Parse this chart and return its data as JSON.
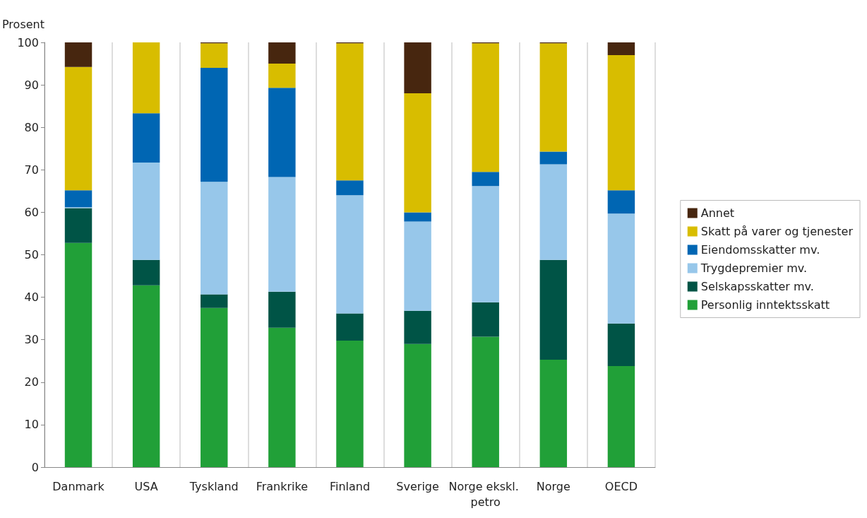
{
  "chart_data": {
    "type": "bar",
    "stacked": true,
    "ylabel": "Prosent",
    "categories": [
      "Danmark",
      "USA",
      "Tyskland",
      "Frankrike",
      "Finland",
      "Sverige",
      "Norge ekskl. petro",
      "Norge",
      "OECD"
    ],
    "series": [
      {
        "name": "Personlig inntektsskatt",
        "color": "#21a038",
        "values": [
          52.8,
          42.8,
          37.5,
          32.8,
          29.8,
          29.0,
          30.7,
          25.3,
          23.8
        ]
      },
      {
        "name": "Selskapsskatter mv.",
        "color": "#005446",
        "values": [
          8.2,
          6.0,
          3.2,
          8.5,
          6.4,
          7.8,
          8.1,
          23.5,
          10.0
        ]
      },
      {
        "name": "Trygdepremier mv.",
        "color": "#97c7ea",
        "values": [
          0.2,
          22.9,
          26.5,
          27.0,
          27.8,
          21.0,
          27.4,
          22.5,
          25.9
        ]
      },
      {
        "name": "Eiendomsskatter mv.",
        "color": "#0066b3",
        "values": [
          4.0,
          11.6,
          26.8,
          21.0,
          3.5,
          2.2,
          3.3,
          3.0,
          5.5
        ]
      },
      {
        "name": "Skatt på varer og tjenester",
        "color": "#d8bd00",
        "values": [
          29.0,
          16.7,
          5.8,
          5.7,
          32.3,
          28.0,
          30.3,
          25.5,
          31.8
        ]
      },
      {
        "name": "Annet",
        "color": "#47260f",
        "values": [
          5.8,
          0.0,
          0.2,
          5.0,
          0.2,
          12.0,
          0.2,
          0.2,
          3.0
        ]
      }
    ],
    "ylim": [
      0,
      100
    ],
    "yticks": [
      0,
      10,
      20,
      30,
      40,
      50,
      60,
      70,
      80,
      90,
      100
    ],
    "grid": "x",
    "legend": "right"
  }
}
